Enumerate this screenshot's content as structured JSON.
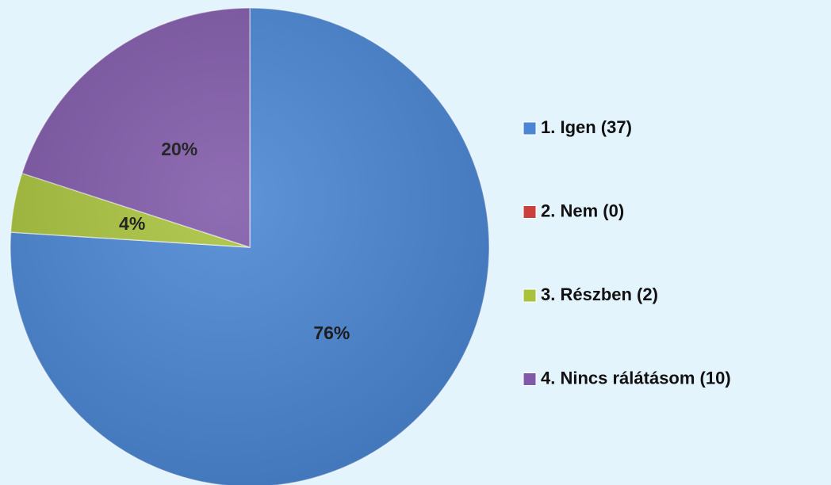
{
  "chart_data": {
    "type": "pie",
    "categories": [
      "1. Igen (37)",
      "2. Nem (0)",
      "3. Részben (2)",
      "4. Nincs rálátásom (10)"
    ],
    "values": [
      76,
      0,
      4,
      20
    ],
    "value_labels": [
      "76%",
      null,
      "4%",
      "20%"
    ],
    "colors": [
      "#4a86d4",
      "#c9403c",
      "#a8c23c",
      "#8059a9"
    ],
    "legend": "right"
  }
}
